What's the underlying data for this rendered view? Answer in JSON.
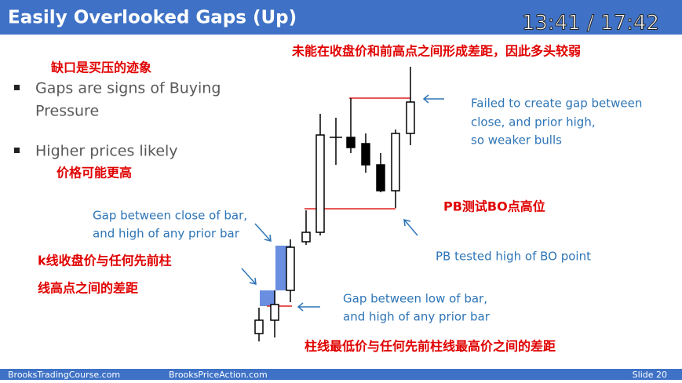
{
  "header": {
    "title": "Easily Overlooked Gaps (Up)",
    "timer": "13:41 / 17:42"
  },
  "bullets": [
    {
      "lines": [
        "Gaps are signs of Buying",
        "Pressure"
      ],
      "translation": "缺口是买压的迹象"
    },
    {
      "lines": [
        "Higher prices likely"
      ],
      "translation": "价格可能更高"
    }
  ],
  "annotations": {
    "failed_gap": {
      "lines": [
        "Failed to create gap between",
        "close, and prior high,",
        "so weaker bulls"
      ],
      "translation": "未能在收盘价和前高点之间形成差距，因此多头较弱"
    },
    "close_gap": {
      "lines": [
        "Gap between close of bar,",
        "and high of any prior bar"
      ],
      "translation": [
        "k线收盘价与任何先前柱",
        "线高点之间的差距"
      ]
    },
    "pb_test": {
      "lines": [
        "PB tested high of BO point"
      ],
      "translation": "PB测试BO点高位"
    },
    "low_gap": {
      "lines": [
        "Gap between low of bar,",
        "and high of any prior bar"
      ],
      "translation": "柱线最低价与任何先前柱线最高价之间的差距"
    }
  },
  "footer": {
    "left": "BrooksTradingCourse.com",
    "center": "BrooksPriceAction.com",
    "right": "Slide 20"
  }
}
